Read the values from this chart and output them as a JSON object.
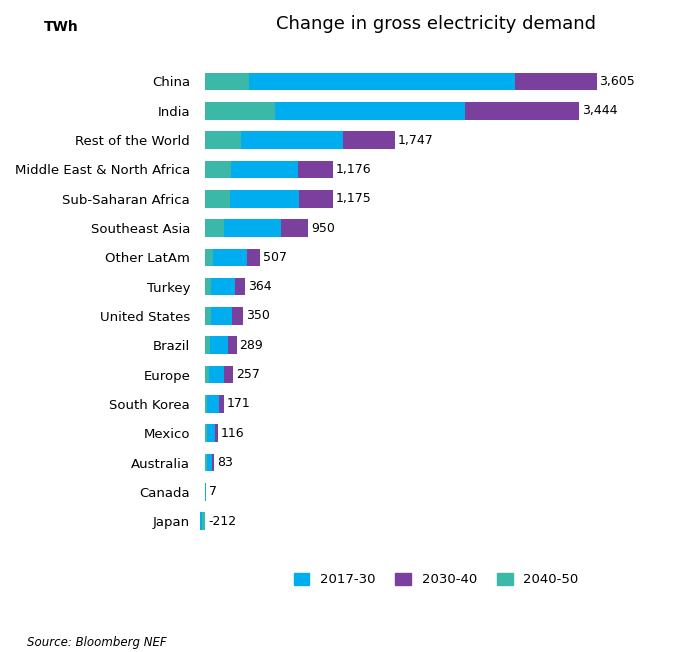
{
  "title": "Change in gross electricity demand",
  "ylabel_unit": "TWh",
  "source": "Source: Bloomberg NEF",
  "colors": {
    "2017-30": "#00AEEF",
    "2030-40": "#7B3F9E",
    "2040-50": "#3CB8A8"
  },
  "categories": [
    "China",
    "India",
    "Rest of the World",
    "Middle East & North Africa",
    "Sub-Saharan Africa",
    "Southeast Asia",
    "Other LatAm",
    "Turkey",
    "United States",
    "Brazil",
    "Europe",
    "South Korea",
    "Mexico",
    "Australia",
    "Canada",
    "Japan"
  ],
  "totals": [
    3605,
    3444,
    1747,
    1176,
    1175,
    950,
    507,
    364,
    350,
    289,
    257,
    171,
    116,
    83,
    7,
    -212
  ],
  "stack_order": [
    "2040-50",
    "2017-30",
    "2030-40"
  ],
  "segments": {
    "2017-30": [
      2450,
      1750,
      940,
      620,
      630,
      530,
      310,
      215,
      190,
      170,
      140,
      110,
      72,
      52,
      12,
      -130
    ],
    "2030-40": [
      750,
      1050,
      480,
      320,
      315,
      250,
      127,
      94,
      105,
      80,
      82,
      42,
      30,
      20,
      2,
      -52
    ],
    "2040-50": [
      405,
      644,
      327,
      236,
      230,
      170,
      70,
      55,
      55,
      39,
      35,
      19,
      14,
      11,
      -7,
      -30
    ]
  }
}
